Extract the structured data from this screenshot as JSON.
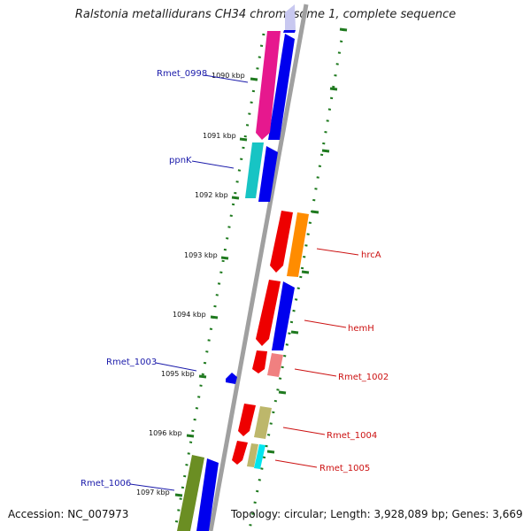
{
  "title": "Ralstonia metallidurans CH34 chromosome 1, complete sequence",
  "footer": {
    "accession": "Accession: NC_007973",
    "summary": "Topology: circular; Length: 3,928,089 bp; Genes: 3,669"
  },
  "ticks": [
    "1090 kbp",
    "1091 kbp",
    "1092 kbp",
    "1093 kbp",
    "1094 kbp",
    "1095 kbp",
    "1096 kbp",
    "1097 kbp"
  ],
  "gene_labels": {
    "left": [
      "Rmet_0998",
      "ppnK",
      "Rmet_1003",
      "Rmet_1006"
    ],
    "right": [
      "hrcA",
      "hemH",
      "Rmet_1002",
      "Rmet_1004",
      "Rmet_1005"
    ]
  },
  "colors": {
    "backbone": "#8a8a8a",
    "tick": "#1f7a1f",
    "label_forward": "#1a1aaa",
    "label_reverse": "#cc1111",
    "forward": "#0000ee",
    "reverse": "#ee0000",
    "magenta": "#e6188e",
    "cyan": "#17c4c4",
    "orange": "#ff8c00",
    "pink": "#f08080",
    "khaki": "#bdb76b",
    "olive": "#6b8e23",
    "light_cyan": "#00e5ee",
    "lavender": "#c8c8f0"
  }
}
